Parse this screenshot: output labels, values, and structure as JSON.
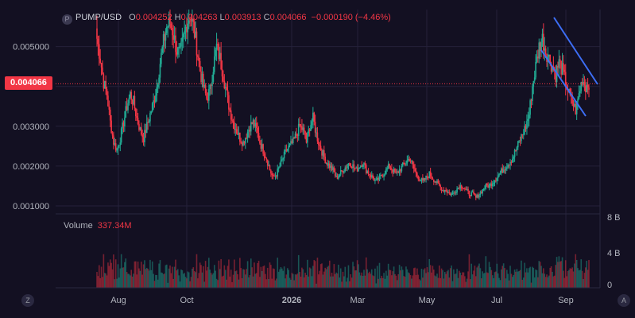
{
  "legend": {
    "symbol": "PUMP/USD",
    "open_label": "O",
    "open": "0.004252",
    "high_label": "H",
    "high": "0.004263",
    "low_label": "L",
    "low": "0.003913",
    "close_label": "C",
    "close": "0.004066",
    "change": "−0.000190 (−4.46%)"
  },
  "price_tag": "0.004066",
  "volume_legend": {
    "label": "Volume",
    "value": "337.34M"
  },
  "buttons": {
    "left": "Z",
    "right": "A"
  },
  "colors": {
    "up": "#22ab94",
    "down": "#f23645",
    "trendline": "#3d6ef5",
    "price_line": "#f23645"
  },
  "chart_data": {
    "type": "candlestick",
    "x_labels": [
      "Aug",
      "Oct",
      "2026",
      "Mar",
      "May",
      "Jul",
      "Sep"
    ],
    "y_ticks": [
      "0.005000",
      "0.004000",
      "0.003000",
      "0.002000",
      "0.001000"
    ],
    "y_tick_values": [
      0.005,
      0.004,
      0.003,
      0.002,
      0.001
    ],
    "volume_ticks": [
      "8 B",
      "4 B",
      "0"
    ],
    "volume_tick_values": [
      8,
      4,
      0
    ],
    "ylim": [
      0.0008,
      0.00593
    ],
    "volume_ylim": [
      0,
      8
    ],
    "last_price": 0.004066,
    "grid": true,
    "price_path": [
      0.0052,
      0.0047,
      0.0041,
      0.0038,
      0.0031,
      0.0026,
      0.0024,
      0.0027,
      0.0031,
      0.0035,
      0.0038,
      0.0036,
      0.0032,
      0.0029,
      0.0027,
      0.003,
      0.0033,
      0.0036,
      0.004,
      0.0046,
      0.0051,
      0.0055,
      0.0056,
      0.0053,
      0.0049,
      0.0048,
      0.0052,
      0.0056,
      0.0058,
      0.0055,
      0.005,
      0.0044,
      0.004,
      0.0037,
      0.0039,
      0.0045,
      0.005,
      0.0047,
      0.0043,
      0.0038,
      0.0034,
      0.0031,
      0.0029,
      0.0027,
      0.0026,
      0.0028,
      0.003,
      0.0031,
      0.0029,
      0.0026,
      0.0024,
      0.0022,
      0.0019,
      0.0017,
      0.0018,
      0.002,
      0.0022,
      0.0024,
      0.0025,
      0.0026,
      0.0028,
      0.003,
      0.0029,
      0.0026,
      0.003,
      0.0032,
      0.0028,
      0.0025,
      0.0023,
      0.0021,
      0.002,
      0.0019,
      0.0017,
      0.0018,
      0.0019,
      0.002,
      0.0021,
      0.002,
      0.0019,
      0.002,
      0.0021,
      0.0019,
      0.0018,
      0.0017,
      0.0016,
      0.0017,
      0.0018,
      0.0019,
      0.002,
      0.0019,
      0.0018,
      0.0019,
      0.002,
      0.0021,
      0.0022,
      0.002,
      0.0018,
      0.0017,
      0.0016,
      0.0017,
      0.0018,
      0.0017,
      0.0016,
      0.0015,
      0.0014,
      0.0014,
      0.0013,
      0.0013,
      0.0014,
      0.0015,
      0.0015,
      0.0014,
      0.0013,
      0.0013,
      0.0012,
      0.0013,
      0.0014,
      0.0015,
      0.0015,
      0.0016,
      0.0017,
      0.0018,
      0.0019,
      0.002,
      0.0021,
      0.0022,
      0.0024,
      0.0026,
      0.0028,
      0.003,
      0.0033,
      0.004,
      0.0045,
      0.005,
      0.0052,
      0.0049,
      0.0047,
      0.0045,
      0.0043,
      0.0046,
      0.0044,
      0.0041,
      0.0038,
      0.0036,
      0.0034,
      0.0038,
      0.0042,
      0.004,
      0.0041
    ]
  }
}
